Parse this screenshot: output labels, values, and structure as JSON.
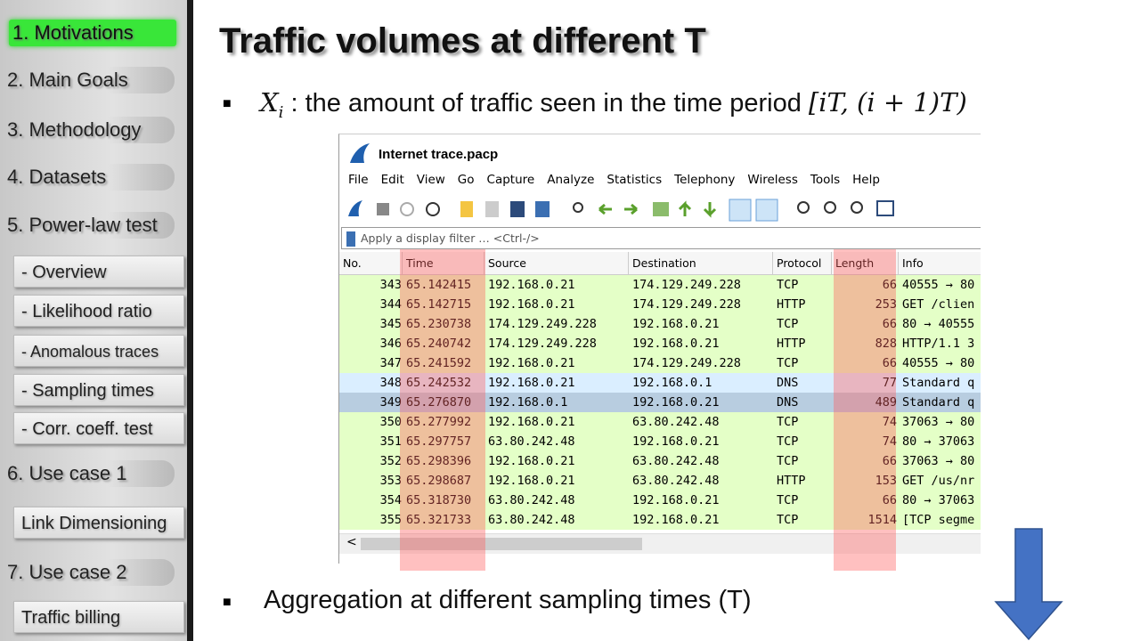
{
  "sidebar": {
    "items": [
      {
        "label": "1. Motivations",
        "kind": "main",
        "active": true
      },
      {
        "label": "2. Main Goals",
        "kind": "main"
      },
      {
        "label": "3. Methodology",
        "kind": "main"
      },
      {
        "label": "4. Datasets",
        "kind": "main"
      },
      {
        "label": "5. Power-law test",
        "kind": "main"
      },
      {
        "label": "- Overview",
        "kind": "sub"
      },
      {
        "label": "- Likelihood ratio",
        "kind": "sub"
      },
      {
        "label": "- Anomalous traces",
        "kind": "sub"
      },
      {
        "label": "- Sampling times",
        "kind": "sub"
      },
      {
        "label": "- Corr. coeff. test",
        "kind": "sub"
      },
      {
        "label": "6. Use case 1",
        "kind": "main"
      },
      {
        "label": "Link Dimensioning",
        "kind": "sub"
      },
      {
        "label": "7. Use case 2",
        "kind": "main"
      },
      {
        "label": "Traffic billing",
        "kind": "sub"
      }
    ]
  },
  "slide": {
    "title": "Traffic volumes at different T",
    "bullet1": {
      "var": "X",
      "sub": "i",
      "text": ": the amount of traffic seen in the time period",
      "interval": "[iT, (i + 1)T)"
    },
    "bullet2": "Aggregation at different sampling times (T)"
  },
  "wireshark": {
    "window_title": "Internet trace.pacp",
    "menu": [
      "File",
      "Edit",
      "View",
      "Go",
      "Capture",
      "Analyze",
      "Statistics",
      "Telephony",
      "Wireless",
      "Tools",
      "Help"
    ],
    "filter_placeholder": "Apply a display filter … <Ctrl-/>",
    "columns": [
      "No.",
      "Time",
      "Source",
      "Destination",
      "Protocol",
      "Length",
      "Info"
    ],
    "rows": [
      [
        "343",
        "65.142415",
        "192.168.0.21",
        "174.129.249.228",
        "TCP",
        "66",
        "40555 → 80"
      ],
      [
        "344",
        "65.142715",
        "192.168.0.21",
        "174.129.249.228",
        "HTTP",
        "253",
        "GET /clien"
      ],
      [
        "345",
        "65.230738",
        "174.129.249.228",
        "192.168.0.21",
        "TCP",
        "66",
        "80 → 40555"
      ],
      [
        "346",
        "65.240742",
        "174.129.249.228",
        "192.168.0.21",
        "HTTP",
        "828",
        "HTTP/1.1 3"
      ],
      [
        "347",
        "65.241592",
        "192.168.0.21",
        "174.129.249.228",
        "TCP",
        "66",
        "40555 → 80"
      ],
      [
        "348",
        "65.242532",
        "192.168.0.21",
        "192.168.0.1",
        "DNS",
        "77",
        "Standard q"
      ],
      [
        "349",
        "65.276870",
        "192.168.0.1",
        "192.168.0.21",
        "DNS",
        "489",
        "Standard q"
      ],
      [
        "350",
        "65.277992",
        "192.168.0.21",
        "63.80.242.48",
        "TCP",
        "74",
        "37063 → 80"
      ],
      [
        "351",
        "65.297757",
        "63.80.242.48",
        "192.168.0.21",
        "TCP",
        "74",
        "80 → 37063"
      ],
      [
        "352",
        "65.298396",
        "192.168.0.21",
        "63.80.242.48",
        "TCP",
        "66",
        "37063 → 80"
      ],
      [
        "353",
        "65.298687",
        "192.168.0.21",
        "63.80.242.48",
        "HTTP",
        "153",
        "GET /us/nr"
      ],
      [
        "354",
        "65.318730",
        "63.80.242.48",
        "192.168.0.21",
        "TCP",
        "66",
        "80 → 37063"
      ],
      [
        "355",
        "65.321733",
        "63.80.242.48",
        "192.168.0.21",
        "TCP",
        "1514",
        "[TCP segme"
      ]
    ],
    "selected_row": 6
  }
}
